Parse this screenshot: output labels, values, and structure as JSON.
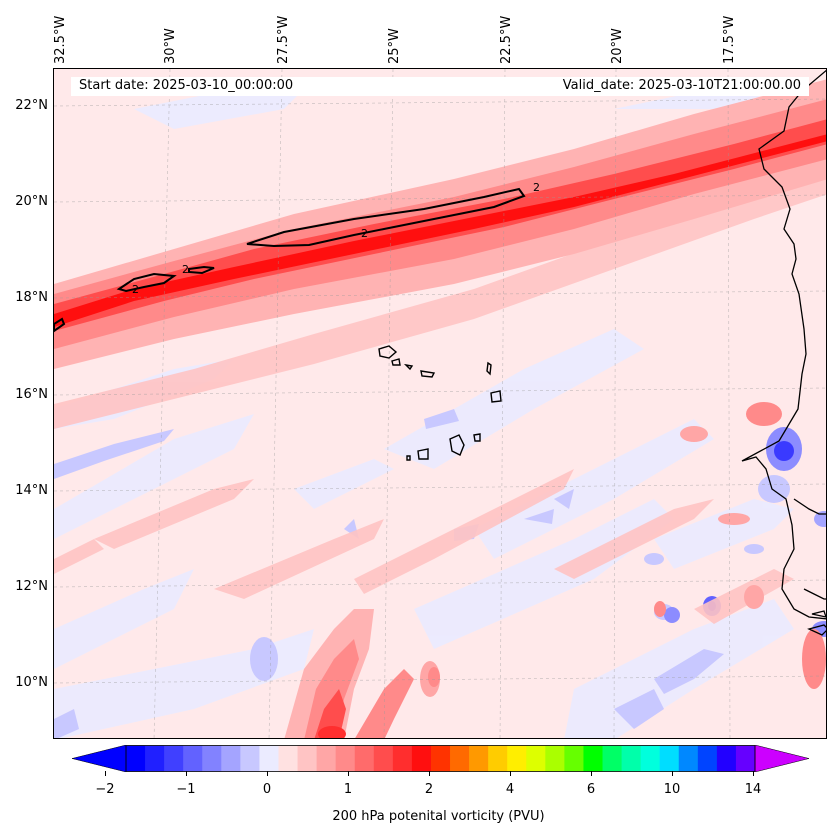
{
  "map": {
    "start_date_text": "Start date: 2025-03-10_00:00:00",
    "valid_date_text": "Valid_date: 2025-03-10T21:00:00.00",
    "lon_labels": [
      "32.5°W",
      "30°W",
      "27.5°W",
      "25°W",
      "22.5°W",
      "20°W",
      "17.5°W"
    ],
    "lat_labels": [
      "22°N",
      "20°N",
      "18°N",
      "16°N",
      "14°N",
      "12°N",
      "10°N"
    ],
    "contour_labels": [
      "2",
      "2",
      "2",
      "2"
    ],
    "features": {
      "jet_axis": "strong positive PV band running WSW-ENE from 18°N at left to 22.5°N at top-right",
      "islands": "Cape Verde islands",
      "coast": "West African coastline"
    },
    "colors": {
      "strong_red": "#ff1a1a",
      "mid_red": "#ff6b6b",
      "light_red": "#ffb3b3",
      "pale_red": "#ffe9ea",
      "pale_blue": "#ebebff",
      "light_blue": "#c8c8ff",
      "mid_blue": "#8c8cff",
      "strong_blue": "#3a3aff"
    }
  },
  "colorbar": {
    "label": "200 hPa potenital vorticity (PVU)",
    "tick_labels": [
      "−2",
      "−1",
      "0",
      "1",
      "2",
      "4",
      "6",
      "10",
      "14"
    ],
    "colors": [
      "#0000ff",
      "#2020ff",
      "#4040ff",
      "#6262ff",
      "#8282ff",
      "#a4a4ff",
      "#c8c8ff",
      "#ebebff",
      "#ffe1e1",
      "#ffc4c4",
      "#ffa6a6",
      "#ff8a8a",
      "#ff6b6b",
      "#ff4d4d",
      "#ff2e2e",
      "#ff0f0f",
      "#ff3300",
      "#ff6a00",
      "#ff9900",
      "#ffcc00",
      "#ffee00",
      "#ddff00",
      "#aaff00",
      "#66ff00",
      "#00ff00",
      "#00ff66",
      "#00ffaa",
      "#00ffdd",
      "#00ddff",
      "#0088ff",
      "#0044ff",
      "#2200ff",
      "#6600ff"
    ],
    "under_color": "#0000ff",
    "over_color": "#cc00ff"
  }
}
